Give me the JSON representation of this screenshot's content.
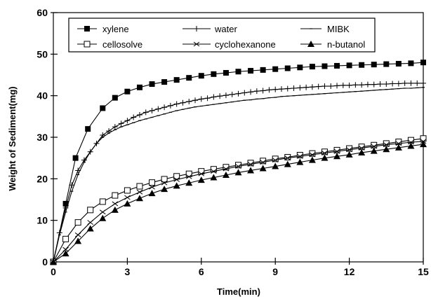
{
  "chart_data": {
    "type": "line",
    "xlabel": "Time(min)",
    "ylabel": "Weight of Sediment(mg)",
    "xlim": [
      0,
      15
    ],
    "ylim": [
      0,
      60
    ],
    "xticks": [
      0,
      3,
      6,
      9,
      12,
      15
    ],
    "yticks": [
      0,
      10,
      20,
      30,
      40,
      50,
      60
    ],
    "grid": false,
    "legend_position": "top",
    "series": [
      {
        "name": "xylene",
        "marker": "filled-square",
        "x": [
          0,
          0.5,
          0.9,
          1.4,
          2.0,
          2.5,
          3.0,
          3.5,
          4.0,
          4.5,
          5.0,
          5.5,
          6.0,
          6.5,
          7.0,
          7.5,
          8.0,
          8.5,
          9.0,
          9.5,
          10.0,
          10.5,
          11.0,
          11.5,
          12.0,
          12.5,
          13.0,
          13.5,
          14.0,
          14.5,
          15.0
        ],
        "y": [
          0,
          14,
          25,
          32,
          37,
          39.5,
          41,
          42,
          42.8,
          43.3,
          43.8,
          44.3,
          44.8,
          45.2,
          45.5,
          45.8,
          46,
          46.2,
          46.4,
          46.6,
          46.8,
          47,
          47.1,
          47.2,
          47.3,
          47.4,
          47.5,
          47.6,
          47.7,
          47.8,
          48
        ]
      },
      {
        "name": "water",
        "marker": "plus",
        "x": [
          0,
          0.25,
          0.5,
          0.75,
          1.0,
          1.25,
          1.5,
          1.75,
          2.0,
          2.25,
          2.5,
          2.75,
          3.0,
          3.25,
          3.5,
          3.75,
          4.0,
          4.25,
          4.5,
          4.75,
          5.0,
          5.25,
          5.5,
          5.75,
          6.0,
          6.25,
          6.5,
          6.75,
          7.0,
          7.25,
          7.5,
          7.75,
          8.0,
          8.25,
          8.5,
          8.75,
          9.0,
          9.25,
          9.5,
          9.75,
          10.0,
          10.25,
          10.5,
          10.75,
          11.0,
          11.25,
          11.5,
          11.75,
          12.0,
          12.25,
          12.5,
          12.75,
          13.0,
          13.25,
          13.5,
          13.75,
          14.0,
          14.25,
          14.5,
          14.75,
          15.0
        ],
        "y": [
          0,
          7,
          13,
          18.5,
          22,
          24.5,
          26.5,
          28.5,
          30.5,
          31.5,
          32.5,
          33.3,
          34,
          34.8,
          35.4,
          36,
          36.4,
          36.8,
          37.2,
          37.6,
          38,
          38.3,
          38.6,
          38.9,
          39.2,
          39.4,
          39.7,
          39.9,
          40.1,
          40.3,
          40.5,
          40.7,
          40.9,
          41.1,
          41.2,
          41.4,
          41.5,
          41.6,
          41.7,
          41.8,
          41.9,
          42,
          42.1,
          42.2,
          42.3,
          42.3,
          42.4,
          42.5,
          42.5,
          42.6,
          42.6,
          42.7,
          42.7,
          42.8,
          42.8,
          42.9,
          42.9,
          43,
          43,
          43,
          43
        ]
      },
      {
        "name": "MIBK",
        "marker": "dash",
        "x": [
          0,
          0.25,
          0.5,
          0.75,
          1.0,
          1.25,
          1.5,
          1.75,
          2.0,
          2.25,
          2.5,
          2.75,
          3.0,
          3.25,
          3.5,
          3.75,
          4.0,
          4.25,
          4.5,
          4.75,
          5.0,
          5.25,
          5.5,
          5.75,
          6.0,
          6.25,
          6.5,
          6.75,
          7.0,
          7.25,
          7.5,
          7.75,
          8.0,
          8.25,
          8.5,
          8.75,
          9.0,
          9.25,
          9.5,
          9.75,
          10.0,
          10.25,
          10.5,
          10.75,
          11.0,
          11.25,
          11.5,
          11.75,
          12.0,
          12.25,
          12.5,
          12.75,
          13.0,
          13.25,
          13.5,
          13.75,
          14.0,
          14.25,
          14.5,
          14.75,
          15.0
        ],
        "y": [
          0,
          6.5,
          12,
          17,
          21,
          24,
          26.5,
          28.5,
          30,
          31,
          31.8,
          32.5,
          33,
          33.5,
          34,
          34.4,
          34.8,
          35.2,
          35.6,
          36,
          36.4,
          36.7,
          37,
          37.3,
          37.5,
          37.7,
          37.9,
          38.1,
          38.3,
          38.5,
          38.7,
          38.9,
          39,
          39.2,
          39.3,
          39.5,
          39.6,
          39.8,
          39.9,
          40,
          40.1,
          40.2,
          40.3,
          40.4,
          40.5,
          40.6,
          40.7,
          40.8,
          40.9,
          41,
          41.1,
          41.2,
          41.3,
          41.4,
          41.5,
          41.6,
          41.7,
          41.8,
          41.8,
          41.9,
          42
        ]
      },
      {
        "name": "cellosolve",
        "marker": "open-square",
        "x": [
          0,
          0.5,
          1.0,
          1.5,
          2.0,
          2.5,
          3.0,
          3.5,
          4.0,
          4.5,
          5.0,
          5.5,
          6.0,
          6.5,
          7.0,
          7.5,
          8.0,
          8.5,
          9.0,
          9.5,
          10.0,
          10.5,
          11.0,
          11.5,
          12.0,
          12.5,
          13.0,
          13.5,
          14.0,
          14.5,
          15.0
        ],
        "y": [
          0,
          5.5,
          9.5,
          12.5,
          14.5,
          16,
          17.2,
          18.2,
          19.1,
          19.9,
          20.6,
          21.2,
          21.8,
          22.3,
          22.8,
          23.3,
          23.8,
          24.3,
          24.8,
          25.2,
          25.7,
          26.1,
          26.5,
          26.9,
          27.3,
          27.7,
          28.1,
          28.5,
          28.9,
          29.3,
          29.7
        ]
      },
      {
        "name": "cyclohexanone",
        "marker": "x",
        "x": [
          0,
          0.5,
          1.0,
          1.5,
          2.0,
          2.5,
          3.0,
          3.5,
          4.0,
          4.5,
          5.0,
          5.5,
          6.0,
          6.5,
          7.0,
          7.5,
          8.0,
          8.5,
          9.0,
          9.5,
          10.0,
          10.5,
          11.0,
          11.5,
          12.0,
          12.5,
          13.0,
          13.5,
          14.0,
          14.5,
          15.0
        ],
        "y": [
          0,
          3,
          6.5,
          9.5,
          12,
          14,
          15.5,
          16.8,
          18,
          19,
          19.8,
          20.5,
          21.2,
          21.8,
          22.4,
          23,
          23.5,
          24,
          24.5,
          25,
          25.4,
          25.8,
          26.2,
          26.6,
          27,
          27.4,
          27.8,
          28.2,
          28.5,
          28.8,
          29
        ]
      },
      {
        "name": "n-butanol",
        "marker": "filled-triangle",
        "x": [
          0,
          0.5,
          1.0,
          1.5,
          2.0,
          2.5,
          3.0,
          3.5,
          4.0,
          4.5,
          5.0,
          5.5,
          6.0,
          6.5,
          7.0,
          7.5,
          8.0,
          8.5,
          9.0,
          9.5,
          10.0,
          10.5,
          11.0,
          11.5,
          12.0,
          12.5,
          13.0,
          13.5,
          14.0,
          14.5,
          15.0
        ],
        "y": [
          0,
          2,
          5,
          8,
          10.5,
          12.5,
          14,
          15.3,
          16.5,
          17.5,
          18.3,
          19,
          19.7,
          20.3,
          20.9,
          21.5,
          22,
          22.5,
          23,
          23.5,
          24,
          24.5,
          25,
          25.4,
          25.8,
          26.3,
          26.7,
          27.1,
          27.5,
          27.9,
          28.3
        ]
      }
    ]
  }
}
